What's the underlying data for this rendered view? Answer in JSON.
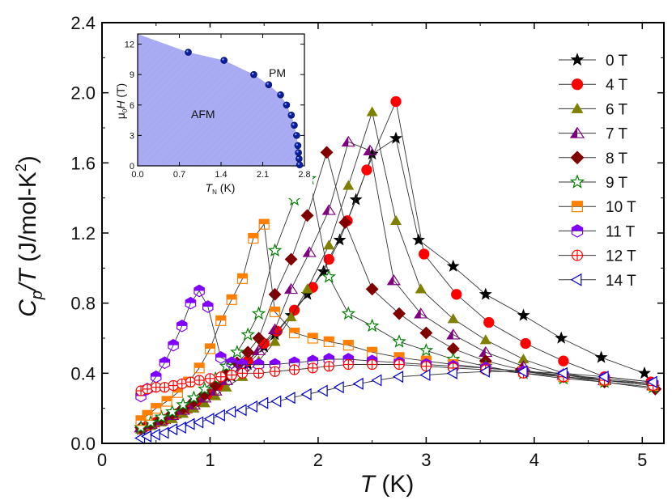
{
  "chart_data": {
    "type": "scatter",
    "xlabel": "T (K)",
    "ylabel": "C_p/T (J/mol-K^2)",
    "xlim": [
      0,
      5.2
    ],
    "ylim": [
      0,
      2.4
    ],
    "xticks": [
      0,
      1,
      2,
      3,
      4,
      5
    ],
    "yticks": [
      0.0,
      0.4,
      0.8,
      1.2,
      1.6,
      2.0,
      2.4
    ],
    "xtick_labels": [
      "0",
      "1",
      "2",
      "3",
      "4",
      "5"
    ],
    "ytick_labels": [
      "0.0",
      "0.4",
      "0.8",
      "1.2",
      "1.6",
      "2.0",
      "2.4"
    ],
    "legend_position": "top-right",
    "series": [
      {
        "name": "0 T",
        "marker": "star",
        "color": "#000000",
        "filled": true,
        "x": [
          0.36,
          0.42,
          0.5,
          0.6,
          0.7,
          0.8,
          0.9,
          1.0,
          1.1,
          1.2,
          1.35,
          1.5,
          1.6,
          1.75,
          1.9,
          2.05,
          2.2,
          2.35,
          2.5,
          2.72,
          2.93,
          3.25,
          3.55,
          3.9,
          4.25,
          4.62,
          5.02
        ],
        "y": [
          0.08,
          0.1,
          0.12,
          0.14,
          0.17,
          0.2,
          0.24,
          0.28,
          0.33,
          0.38,
          0.45,
          0.55,
          0.62,
          0.73,
          0.85,
          0.98,
          1.16,
          1.39,
          1.65,
          1.74,
          1.16,
          1.01,
          0.85,
          0.73,
          0.6,
          0.49,
          0.4
        ]
      },
      {
        "name": "4 T",
        "marker": "circle",
        "color": "#ff0000",
        "filled": true,
        "x": [
          0.36,
          0.42,
          0.5,
          0.6,
          0.7,
          0.8,
          0.9,
          1.0,
          1.1,
          1.2,
          1.35,
          1.5,
          1.62,
          1.78,
          1.95,
          2.1,
          2.27,
          2.45,
          2.72,
          2.98,
          3.28,
          3.58,
          3.92,
          4.27,
          4.65,
          5.08
        ],
        "y": [
          0.08,
          0.1,
          0.12,
          0.14,
          0.17,
          0.2,
          0.24,
          0.28,
          0.33,
          0.39,
          0.47,
          0.57,
          0.64,
          0.76,
          0.89,
          1.05,
          1.27,
          1.56,
          1.95,
          1.08,
          0.85,
          0.69,
          0.57,
          0.47,
          0.38,
          0.35
        ]
      },
      {
        "name": "6 T",
        "marker": "triangle",
        "color": "#808000",
        "filled": true,
        "x": [
          0.36,
          0.45,
          0.55,
          0.65,
          0.75,
          0.85,
          0.95,
          1.05,
          1.15,
          1.3,
          1.45,
          1.6,
          1.75,
          1.9,
          2.1,
          2.28,
          2.5,
          2.72,
          2.95,
          3.25,
          3.55,
          3.9,
          4.27,
          4.65,
          5.1
        ],
        "y": [
          0.08,
          0.1,
          0.12,
          0.14,
          0.17,
          0.2,
          0.23,
          0.27,
          0.32,
          0.38,
          0.47,
          0.58,
          0.72,
          0.88,
          1.13,
          1.47,
          1.89,
          1.27,
          0.88,
          0.71,
          0.59,
          0.48,
          0.4,
          0.36,
          0.34
        ]
      },
      {
        "name": "7 T",
        "marker": "triangle-half",
        "color": "#800080",
        "filled": false,
        "x": [
          0.36,
          0.45,
          0.55,
          0.65,
          0.75,
          0.85,
          0.95,
          1.05,
          1.15,
          1.3,
          1.45,
          1.6,
          1.75,
          1.92,
          2.1,
          2.28,
          2.48,
          2.7,
          2.95,
          3.25,
          3.55,
          3.9,
          4.27,
          4.65,
          5.1
        ],
        "y": [
          0.09,
          0.11,
          0.13,
          0.16,
          0.19,
          0.22,
          0.26,
          0.3,
          0.36,
          0.44,
          0.53,
          0.65,
          0.88,
          1.09,
          1.33,
          1.72,
          1.67,
          0.93,
          0.74,
          0.62,
          0.52,
          0.44,
          0.39,
          0.36,
          0.33
        ]
      },
      {
        "name": "8 T",
        "marker": "diamond",
        "color": "#800000",
        "filled": true,
        "x": [
          0.36,
          0.45,
          0.55,
          0.65,
          0.75,
          0.85,
          0.95,
          1.05,
          1.15,
          1.25,
          1.35,
          1.45,
          1.6,
          1.75,
          1.9,
          2.08,
          2.25,
          2.5,
          2.75,
          3.0,
          3.25,
          3.55,
          3.88,
          4.27,
          4.65,
          5.12
        ],
        "y": [
          0.09,
          0.11,
          0.14,
          0.17,
          0.2,
          0.24,
          0.28,
          0.33,
          0.39,
          0.46,
          0.52,
          0.6,
          0.85,
          1.05,
          1.3,
          1.66,
          1.26,
          0.88,
          0.74,
          0.63,
          0.54,
          0.47,
          0.42,
          0.38,
          0.35,
          0.31
        ]
      },
      {
        "name": "9 T",
        "marker": "star-open",
        "color": "#008000",
        "filled": false,
        "x": [
          0.36,
          0.45,
          0.55,
          0.65,
          0.75,
          0.85,
          0.95,
          1.05,
          1.15,
          1.25,
          1.35,
          1.45,
          1.6,
          1.78,
          1.92,
          2.1,
          2.28,
          2.5,
          2.75,
          3.0,
          3.25,
          3.55,
          3.9,
          4.27,
          4.65,
          5.1
        ],
        "y": [
          0.09,
          0.12,
          0.15,
          0.18,
          0.22,
          0.26,
          0.31,
          0.37,
          0.44,
          0.52,
          0.62,
          0.74,
          1.1,
          1.39,
          1.51,
          0.95,
          0.74,
          0.67,
          0.58,
          0.53,
          0.48,
          0.44,
          0.4,
          0.37,
          0.35,
          0.32
        ]
      },
      {
        "name": "10 T",
        "marker": "square-half",
        "color": "#ff8000",
        "filled": false,
        "x": [
          0.36,
          0.42,
          0.5,
          0.6,
          0.7,
          0.8,
          0.9,
          1.0,
          1.1,
          1.2,
          1.3,
          1.4,
          1.5,
          1.6,
          1.78,
          1.95,
          2.1,
          2.28,
          2.5,
          2.75,
          3.0,
          3.25,
          3.55,
          3.9,
          4.27,
          4.65,
          5.1
        ],
        "y": [
          0.13,
          0.16,
          0.2,
          0.24,
          0.29,
          0.35,
          0.43,
          0.54,
          0.7,
          0.82,
          0.94,
          1.17,
          1.25,
          0.75,
          0.63,
          0.6,
          0.58,
          0.56,
          0.52,
          0.49,
          0.47,
          0.45,
          0.43,
          0.41,
          0.38,
          0.36,
          0.33
        ]
      },
      {
        "name": "11 T",
        "marker": "hexagon-half",
        "color": "#8000ff",
        "filled": false,
        "x": [
          0.36,
          0.42,
          0.5,
          0.58,
          0.66,
          0.74,
          0.82,
          0.9,
          0.98,
          1.1,
          1.2,
          1.3,
          1.45,
          1.6,
          1.78,
          1.95,
          2.1,
          2.28,
          2.5,
          2.75,
          3.0,
          3.25,
          3.55,
          3.9,
          4.27,
          4.65,
          5.1
        ],
        "y": [
          0.27,
          0.31,
          0.38,
          0.46,
          0.56,
          0.67,
          0.8,
          0.87,
          0.78,
          0.49,
          0.46,
          0.45,
          0.45,
          0.45,
          0.46,
          0.47,
          0.48,
          0.48,
          0.47,
          0.46,
          0.45,
          0.44,
          0.43,
          0.41,
          0.39,
          0.37,
          0.34
        ]
      },
      {
        "name": "12 T",
        "marker": "circle-cross",
        "color": "#ff0000",
        "filled": false,
        "x": [
          0.36,
          0.42,
          0.5,
          0.58,
          0.66,
          0.74,
          0.82,
          0.9,
          1.0,
          1.1,
          1.2,
          1.3,
          1.45,
          1.6,
          1.78,
          1.95,
          2.1,
          2.28,
          2.5,
          2.75,
          3.0,
          3.25,
          3.55,
          3.9,
          4.27,
          4.65,
          5.1
        ],
        "y": [
          0.3,
          0.31,
          0.32,
          0.32,
          0.33,
          0.34,
          0.35,
          0.36,
          0.37,
          0.38,
          0.39,
          0.4,
          0.4,
          0.41,
          0.42,
          0.43,
          0.44,
          0.45,
          0.45,
          0.45,
          0.44,
          0.43,
          0.42,
          0.4,
          0.38,
          0.36,
          0.33
        ]
      },
      {
        "name": "14 T",
        "marker": "triangle-left",
        "color": "#0000cc",
        "filled": false,
        "x": [
          0.36,
          0.42,
          0.5,
          0.58,
          0.66,
          0.74,
          0.82,
          0.9,
          1.0,
          1.1,
          1.2,
          1.3,
          1.4,
          1.5,
          1.62,
          1.75,
          1.9,
          2.05,
          2.2,
          2.38,
          2.55,
          2.75,
          3.0,
          3.25,
          3.55,
          3.9,
          4.27,
          4.65,
          5.1
        ],
        "y": [
          0.03,
          0.04,
          0.05,
          0.06,
          0.08,
          0.09,
          0.11,
          0.12,
          0.14,
          0.16,
          0.18,
          0.19,
          0.21,
          0.23,
          0.24,
          0.26,
          0.28,
          0.3,
          0.32,
          0.34,
          0.36,
          0.38,
          0.39,
          0.4,
          0.41,
          0.41,
          0.4,
          0.38,
          0.35
        ]
      }
    ],
    "inset": {
      "type": "scatter",
      "xlabel": "T_N (K)",
      "ylabel": "μ0H (T)",
      "xlim": [
        0,
        2.8
      ],
      "ylim": [
        0,
        13
      ],
      "xticks": [
        0.0,
        0.7,
        1.4,
        2.1,
        2.8
      ],
      "yticks": [
        0,
        3,
        6,
        9,
        12
      ],
      "xtick_labels": [
        "0.0",
        "0.7",
        "1.4",
        "2.1",
        "2.8"
      ],
      "ytick_labels": [
        "0",
        "3",
        "6",
        "9",
        "12"
      ],
      "x": [
        0.85,
        1.45,
        1.95,
        2.2,
        2.4,
        2.5,
        2.58,
        2.63,
        2.67,
        2.69,
        2.7,
        2.71,
        2.72
      ],
      "y": [
        11.2,
        10.4,
        9.0,
        8.0,
        7.0,
        6.0,
        5.0,
        4.0,
        3.0,
        2.0,
        1.3,
        0.7,
        0.1
      ],
      "region_labels": [
        "PM",
        "AFM"
      ]
    }
  }
}
